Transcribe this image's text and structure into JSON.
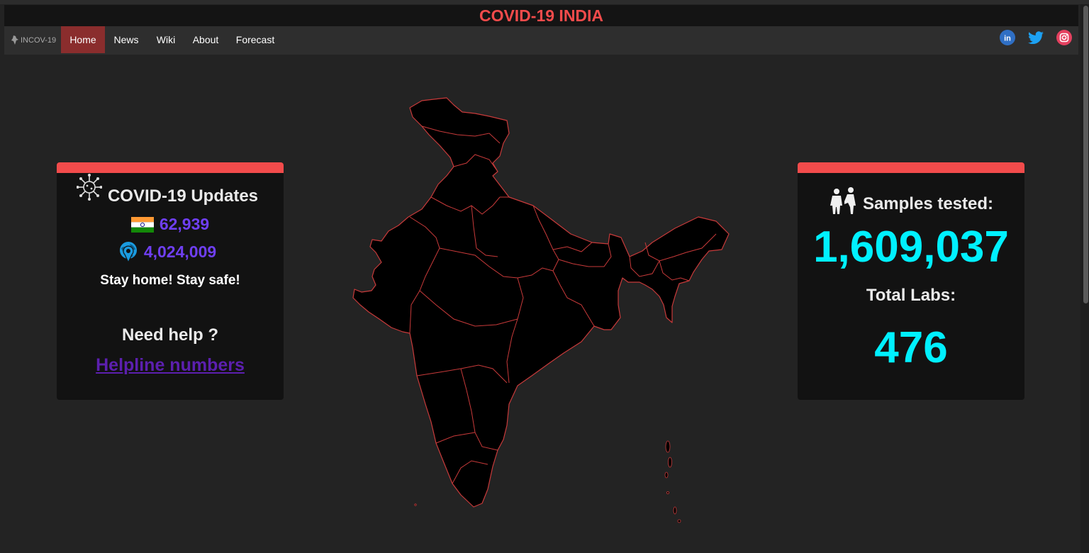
{
  "page": {
    "title": "COVID-19 INDIA"
  },
  "brand": {
    "label": "INCOV-19",
    "icon": "india-map-icon"
  },
  "nav": {
    "items": [
      {
        "label": "Home",
        "active": true
      },
      {
        "label": "News",
        "active": false
      },
      {
        "label": "Wiki",
        "active": false
      },
      {
        "label": "About",
        "active": false
      },
      {
        "label": "Forecast",
        "active": false
      }
    ]
  },
  "social": [
    {
      "name": "linkedin-icon",
      "glyph": "in",
      "color": "#2f6fc4"
    },
    {
      "name": "twitter-icon",
      "color": "#1da1f2"
    },
    {
      "name": "instagram-icon",
      "color": "#e4405f"
    }
  ],
  "updates_card": {
    "title": "COVID-19 Updates",
    "india_count": "62,939",
    "world_count": "4,024,009",
    "message": "Stay home! Stay safe!",
    "help_heading": "Need help ?",
    "helpline_link": "Helpline numbers"
  },
  "samples_card": {
    "samples_label": "Samples tested:",
    "samples_value": "1,609,037",
    "labs_label": "Total Labs:",
    "labs_value": "476"
  },
  "colors": {
    "title_red": "#f24b4b",
    "card_stripe": "#f24b4b",
    "count_purple": "#6f3ff2",
    "link_purple": "#5c1faf",
    "cyan": "#00f0ff",
    "map_fill": "#000000",
    "map_border": "#c83a3a"
  }
}
